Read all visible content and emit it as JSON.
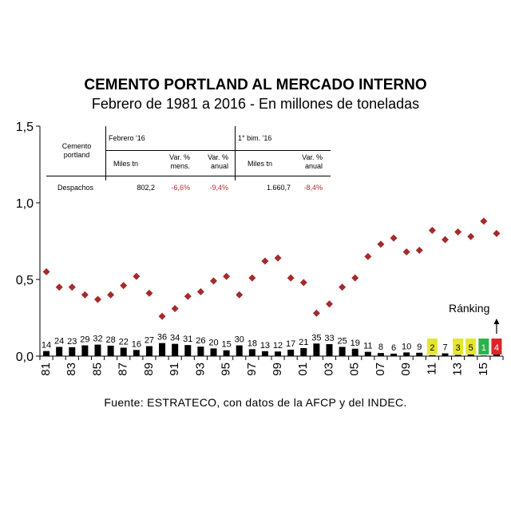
{
  "title": "CEMENTO PORTLAND AL MERCADO INTERNO",
  "subtitle": "Febrero de 1981 a 2016 - En millones de toneladas",
  "source": "Fuente: ESTRATECO, con datos de la AFCP y del INDEC.",
  "ranking_label": "Ránking",
  "table": {
    "row_header": "Cemento portland",
    "group1": "Febrero '16",
    "group2": "1° bim. '16",
    "h_miles1": "Miles tn",
    "h_mens": "Var. % mens.",
    "h_anual1": "Var. % anual",
    "h_miles2": "Miles tn",
    "h_anual2": "Var. % anual",
    "row_label": "Despachos",
    "v_miles1": "802,2",
    "v_mens": "-6,6%",
    "v_anual1": "-9,4%",
    "v_miles2": "1.660,7",
    "v_anual2": "-8,4%"
  },
  "chart_data": {
    "type": "scatter",
    "x": [
      1981,
      1982,
      1983,
      1984,
      1985,
      1986,
      1987,
      1988,
      1989,
      1990,
      1991,
      1992,
      1993,
      1994,
      1995,
      1996,
      1997,
      1998,
      1999,
      2000,
      2001,
      2002,
      2003,
      2004,
      2005,
      2006,
      2007,
      2008,
      2009,
      2010,
      2011,
      2012,
      2013,
      2014,
      2015,
      2016
    ],
    "xtick_labels": [
      "81",
      "83",
      "85",
      "87",
      "89",
      "91",
      "93",
      "95",
      "97",
      "99",
      "01",
      "03",
      "05",
      "07",
      "09",
      "11",
      "13",
      "15"
    ],
    "y": [
      0.55,
      0.45,
      0.45,
      0.4,
      0.37,
      0.4,
      0.46,
      0.52,
      0.41,
      0.26,
      0.31,
      0.39,
      0.42,
      0.49,
      0.52,
      0.4,
      0.51,
      0.62,
      0.64,
      0.51,
      0.48,
      0.28,
      0.34,
      0.45,
      0.51,
      0.65,
      0.73,
      0.77,
      0.68,
      0.69,
      0.82,
      0.76,
      0.81,
      0.78,
      0.88,
      0.8
    ],
    "ranking": [
      14,
      24,
      23,
      29,
      32,
      28,
      22,
      16,
      27,
      36,
      34,
      31,
      26,
      20,
      15,
      30,
      18,
      13,
      12,
      17,
      21,
      35,
      33,
      25,
      19,
      11,
      8,
      6,
      10,
      9,
      2,
      7,
      3,
      5,
      1,
      4
    ],
    "ranking_bar_heights": [
      0.033,
      0.06,
      0.058,
      0.07,
      0.075,
      0.068,
      0.055,
      0.04,
      0.065,
      0.085,
      0.08,
      0.072,
      0.062,
      0.05,
      0.038,
      0.07,
      0.045,
      0.032,
      0.03,
      0.042,
      0.052,
      0.082,
      0.078,
      0.06,
      0.048,
      0.028,
      0.02,
      0.016,
      0.024,
      0.022,
      0.006,
      0.018,
      0.008,
      0.012,
      0.004,
      0.01
    ],
    "highlight_colors": {
      "2": "#e6e62e",
      "3": "#e6e62e",
      "5": "#e6e62e",
      "1": "#2db34a",
      "4": "#d8262b"
    },
    "ylim": [
      0,
      1.5
    ],
    "ytick_labels": [
      "0,0",
      "0,5",
      "1,0",
      "1,5"
    ],
    "marker_color": "#a52a2a",
    "bar_color": "#000000",
    "grid": false
  }
}
